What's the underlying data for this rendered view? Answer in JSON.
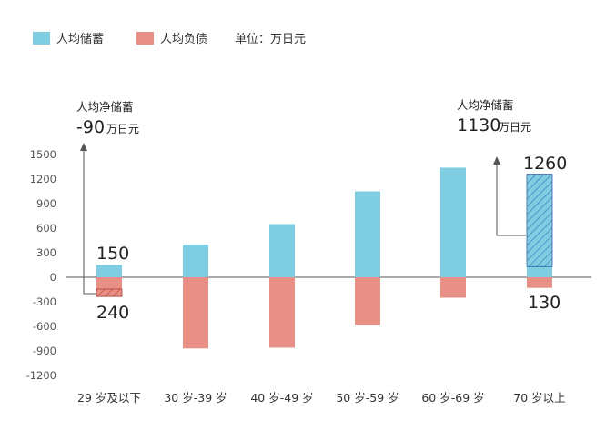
{
  "chart_data": {
    "type": "bar",
    "legend": {
      "items": [
        {
          "label": "人均储蓄",
          "color": "#7ecde0"
        },
        {
          "label": "人均负债",
          "color": "#e88f86"
        }
      ],
      "unit_label": "单位：万日元",
      "position": "top-left"
    },
    "categories": [
      "29 岁及以下",
      "30 岁-39 岁",
      "40 岁-49 岁",
      "50 岁-59 岁",
      "60 岁-69 岁",
      "70 岁以上"
    ],
    "series": [
      {
        "name": "人均储蓄",
        "values": [
          150,
          400,
          650,
          1050,
          1340,
          1260
        ]
      },
      {
        "name": "人均负债",
        "values": [
          -240,
          -870,
          -860,
          -580,
          -250,
          -130
        ]
      }
    ],
    "ylim": [
      -1200,
      1500
    ],
    "yticks": [
      1500,
      1200,
      900,
      600,
      300,
      0,
      -300,
      -600,
      -900,
      -1200
    ],
    "grid": false,
    "annotations": [
      {
        "title": "人均净储蓄",
        "value": "-90",
        "unit": "万日元",
        "category_index": 0
      },
      {
        "title": "人均净储蓄",
        "value": "1130",
        "unit": "万日元",
        "category_index": 5
      }
    ],
    "data_labels": [
      {
        "text": "150",
        "category_index": 0,
        "series": "人均储蓄"
      },
      {
        "text": "240",
        "category_index": 0,
        "series": "人均负债"
      },
      {
        "text": "1260",
        "category_index": 5,
        "series": "人均储蓄"
      },
      {
        "text": "130",
        "category_index": 5,
        "series": "人均负债"
      }
    ]
  }
}
